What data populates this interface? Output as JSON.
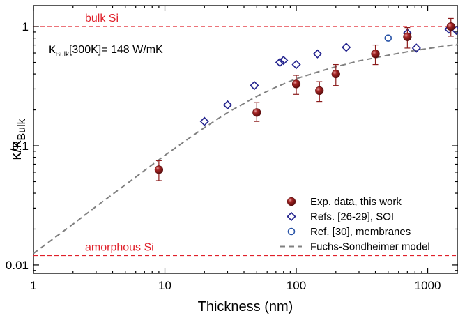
{
  "chart_data": {
    "type": "scatter",
    "x_scale": "log",
    "y_scale": "log",
    "xlim": [
      1,
      1700
    ],
    "ylim": [
      0.0085,
      1.5
    ],
    "x_ticks": [
      1,
      10,
      100,
      1000
    ],
    "x_tick_labels": [
      "1",
      "10",
      "100",
      "1000"
    ],
    "y_ticks": [
      0.01,
      0.1,
      1
    ],
    "y_tick_labels": [
      "0.01",
      "0.1",
      "1"
    ],
    "xlabel": "Thickness (nm)",
    "ylabel": {
      "kappa_num": "κ",
      "slash": "/",
      "kappa_den": "κ",
      "den_sub": "Bulk"
    },
    "annotation": {
      "kappa": "κ",
      "sub": "Bulk",
      "rest": "[300K]= 148 W/mK"
    },
    "reference_lines": [
      {
        "label": "bulk Si",
        "y": 1.0,
        "color": "#e0202a"
      },
      {
        "label": "amorphous Si",
        "y": 0.012,
        "color": "#e0202a"
      }
    ],
    "series": [
      {
        "name": "Exp. data, this work",
        "marker": "filled-circle",
        "color": "#8b1a1a",
        "points": [
          {
            "x": 9,
            "y": 0.063,
            "lo": 0.051,
            "hi": 0.075
          },
          {
            "x": 50,
            "y": 0.19,
            "lo": 0.16,
            "hi": 0.23
          },
          {
            "x": 100,
            "y": 0.33,
            "lo": 0.27,
            "hi": 0.39
          },
          {
            "x": 150,
            "y": 0.29,
            "lo": 0.235,
            "hi": 0.345
          },
          {
            "x": 200,
            "y": 0.4,
            "lo": 0.32,
            "hi": 0.48
          },
          {
            "x": 400,
            "y": 0.59,
            "lo": 0.48,
            "hi": 0.7
          },
          {
            "x": 700,
            "y": 0.82,
            "lo": 0.66,
            "hi": 0.98
          },
          {
            "x": 1500,
            "y": 1.0,
            "lo": 0.83,
            "hi": 1.17
          }
        ]
      },
      {
        "name": "Refs. [26-29], SOI",
        "marker": "open-diamond",
        "color": "#23238e",
        "points": [
          {
            "x": 20,
            "y": 0.16
          },
          {
            "x": 30,
            "y": 0.22
          },
          {
            "x": 48,
            "y": 0.32
          },
          {
            "x": 75,
            "y": 0.5
          },
          {
            "x": 80,
            "y": 0.52
          },
          {
            "x": 100,
            "y": 0.48
          },
          {
            "x": 145,
            "y": 0.59
          },
          {
            "x": 240,
            "y": 0.67
          },
          {
            "x": 400,
            "y": 0.59
          },
          {
            "x": 700,
            "y": 0.88
          },
          {
            "x": 820,
            "y": 0.66
          },
          {
            "x": 1450,
            "y": 0.95
          },
          {
            "x": 1650,
            "y": 0.93
          }
        ]
      },
      {
        "name": "Ref. [30], membranes",
        "marker": "open-circle",
        "color": "#2a55a8",
        "points": [
          {
            "x": 500,
            "y": 0.8
          }
        ]
      },
      {
        "name": "Fuchs-Sondheimer model",
        "marker": "dashed-line",
        "color": "#808080",
        "points": [
          {
            "x": 1,
            "y": 0.0125
          },
          {
            "x": 2,
            "y": 0.022
          },
          {
            "x": 3,
            "y": 0.031
          },
          {
            "x": 5,
            "y": 0.047
          },
          {
            "x": 7,
            "y": 0.062
          },
          {
            "x": 10,
            "y": 0.083
          },
          {
            "x": 15,
            "y": 0.114
          },
          {
            "x": 20,
            "y": 0.142
          },
          {
            "x": 30,
            "y": 0.19
          },
          {
            "x": 50,
            "y": 0.26
          },
          {
            "x": 70,
            "y": 0.31
          },
          {
            "x": 100,
            "y": 0.365
          },
          {
            "x": 150,
            "y": 0.42
          },
          {
            "x": 200,
            "y": 0.46
          },
          {
            "x": 300,
            "y": 0.515
          },
          {
            "x": 500,
            "y": 0.575
          },
          {
            "x": 700,
            "y": 0.615
          },
          {
            "x": 1000,
            "y": 0.655
          },
          {
            "x": 1700,
            "y": 0.71
          }
        ]
      }
    ],
    "legend_position": "bottom-right"
  }
}
